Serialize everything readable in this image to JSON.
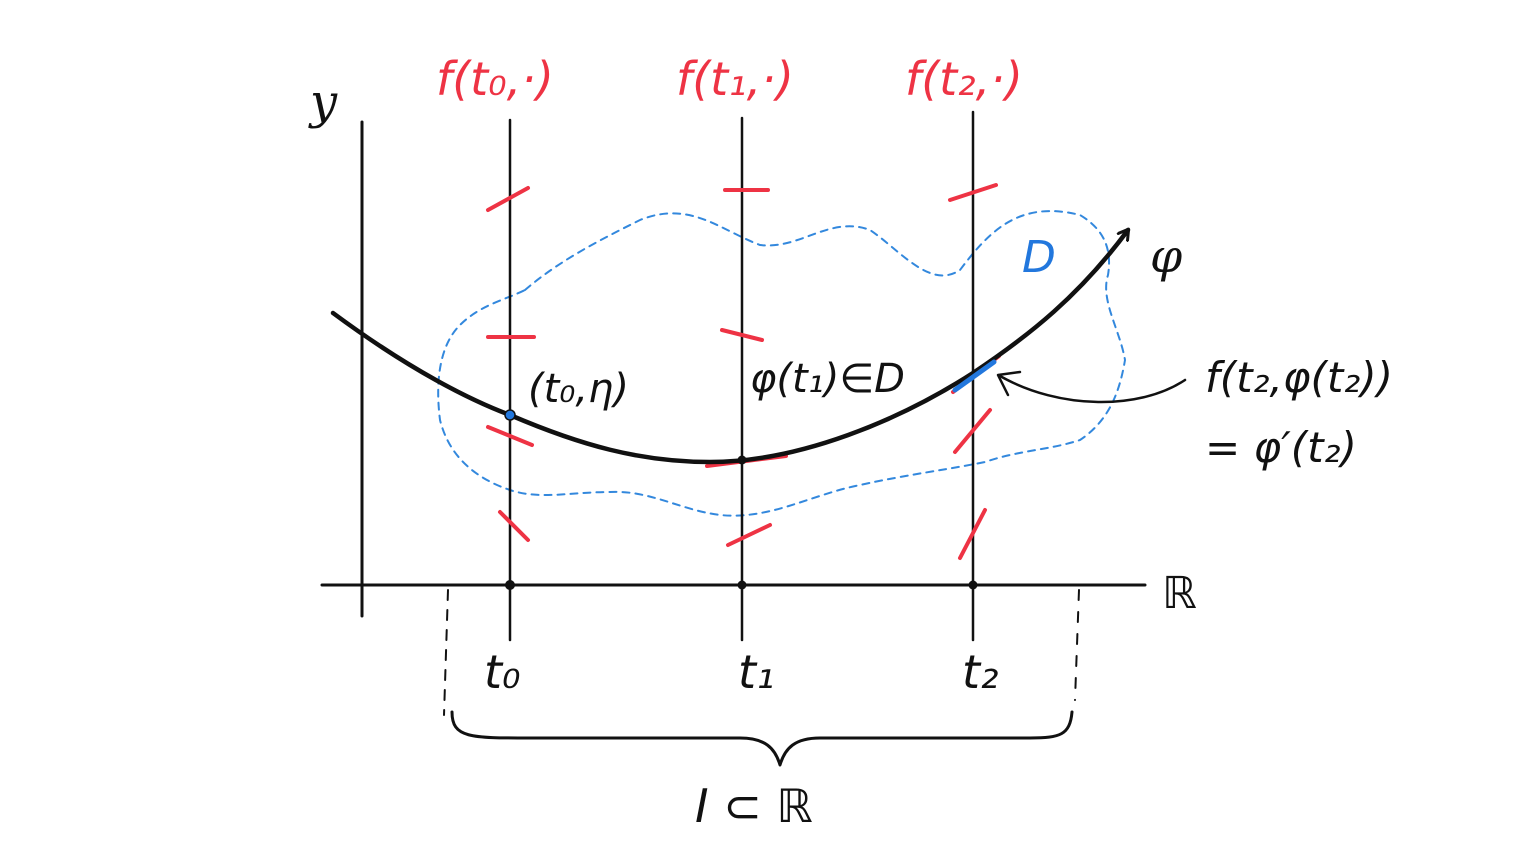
{
  "axes": {
    "y_label": "y",
    "x_label": "ℝ"
  },
  "slope_field_labels": {
    "t0": "f(t₀,·)",
    "t1": "f(t₁,·)",
    "t2": "f(t₂,·)"
  },
  "tick_labels": {
    "t0": "t₀",
    "t1": "t₁",
    "t2": "t₂"
  },
  "region_label": "D",
  "curve_label": "φ",
  "point_labels": {
    "initial": "(t₀,η)",
    "membership": "φ(t₁)∈D"
  },
  "tangent_annotation": {
    "line1": "f(t₂,φ(t₂))",
    "line2": "= φ′(t₂)"
  },
  "interval_label": "I ⊂ ℝ",
  "colors": {
    "ink": "#111111",
    "field": "#ee3344",
    "region": "#3388dd"
  }
}
